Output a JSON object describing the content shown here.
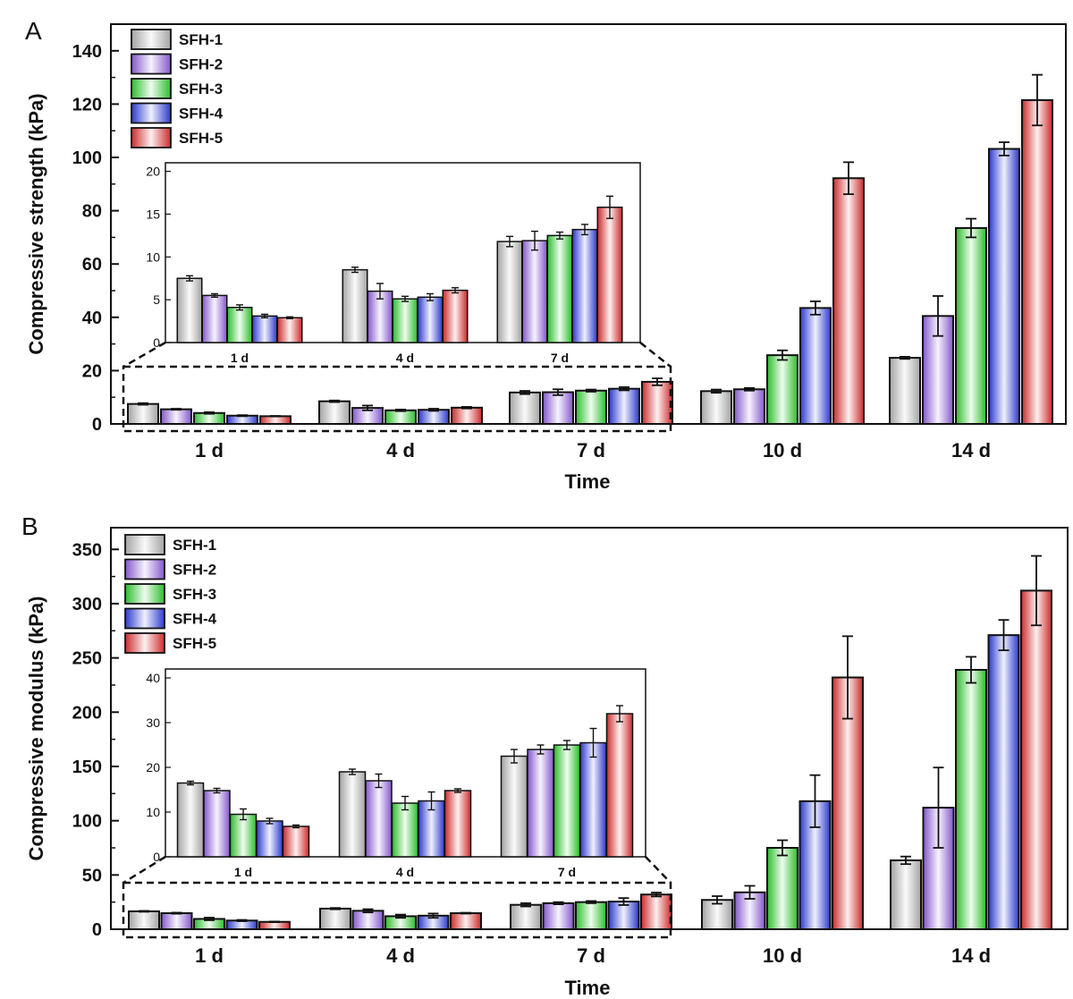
{
  "colors": {
    "SFH-1": "#c0c0c0",
    "SFH-2": "#9a66ee",
    "SFH-3": "#33dd33",
    "SFH-4": "#3344ee",
    "SFH-5": "#ee3333"
  },
  "chart_data": [
    {
      "panel": "A",
      "type": "bar",
      "xlabel": "Time",
      "ylabel": "Compressive strength (kPa)",
      "ylim": [
        0,
        150
      ],
      "yticks": [
        0,
        20,
        40,
        60,
        80,
        100,
        120,
        140
      ],
      "categories": [
        "1 d",
        "4 d",
        "7 d",
        "10 d",
        "14 d"
      ],
      "legend": "top-left",
      "series": [
        {
          "name": "SFH-1",
          "values": [
            7.5,
            8.5,
            11.8,
            12.3,
            24.8
          ],
          "errors": [
            0.3,
            0.3,
            0.6,
            0.6,
            0.4
          ]
        },
        {
          "name": "SFH-2",
          "values": [
            5.5,
            6.0,
            11.9,
            13.0,
            40.5
          ],
          "errors": [
            0.2,
            0.9,
            1.1,
            0.5,
            7.5
          ]
        },
        {
          "name": "SFH-3",
          "values": [
            4.1,
            5.1,
            12.5,
            25.8,
            73.5
          ],
          "errors": [
            0.3,
            0.3,
            0.4,
            1.8,
            3.5
          ]
        },
        {
          "name": "SFH-4",
          "values": [
            3.1,
            5.3,
            13.2,
            43.5,
            103.2
          ],
          "errors": [
            0.2,
            0.4,
            0.6,
            2.5,
            2.5
          ]
        },
        {
          "name": "SFH-5",
          "values": [
            2.9,
            6.1,
            15.8,
            92.2,
            121.5
          ],
          "errors": [
            0.1,
            0.3,
            1.3,
            6.0,
            9.5
          ]
        }
      ],
      "inset": {
        "categories": [
          "1 d",
          "4 d",
          "7 d"
        ],
        "ylim": [
          0,
          21
        ],
        "yticks": [
          0,
          5,
          10,
          15,
          20
        ]
      }
    },
    {
      "panel": "B",
      "type": "bar",
      "xlabel": "Time",
      "ylabel": "Compressive modulus (kPa)",
      "ylim": [
        0,
        370
      ],
      "yticks": [
        0,
        50,
        100,
        150,
        200,
        250,
        300,
        350
      ],
      "categories": [
        "1 d",
        "4 d",
        "7 d",
        "10 d",
        "14 d"
      ],
      "legend": "top-left",
      "series": [
        {
          "name": "SFH-1",
          "values": [
            16.5,
            19.0,
            22.5,
            27.0,
            63.5
          ],
          "errors": [
            0.4,
            0.6,
            1.5,
            3.5,
            3.5
          ]
        },
        {
          "name": "SFH-2",
          "values": [
            14.8,
            17.0,
            24.0,
            34.0,
            112.0
          ],
          "errors": [
            0.5,
            1.5,
            1.0,
            6.0,
            37.0
          ]
        },
        {
          "name": "SFH-3",
          "values": [
            9.5,
            12.0,
            25.0,
            75.0,
            239.0
          ],
          "errors": [
            1.2,
            1.5,
            1.0,
            7.0,
            12.0
          ]
        },
        {
          "name": "SFH-4",
          "values": [
            8.0,
            12.5,
            25.5,
            118.0,
            271.0
          ],
          "errors": [
            0.6,
            2.0,
            3.2,
            24.0,
            14.0
          ]
        },
        {
          "name": "SFH-5",
          "values": [
            6.8,
            14.8,
            32.0,
            232.0,
            312.0
          ],
          "errors": [
            0.3,
            0.4,
            1.8,
            38.0,
            32.0
          ]
        }
      ],
      "inset": {
        "categories": [
          "1 d",
          "4 d",
          "7 d"
        ],
        "ylim": [
          0,
          42
        ],
        "yticks": [
          0,
          10,
          20,
          30,
          40
        ]
      }
    }
  ],
  "panel_labels": [
    "A",
    "B"
  ]
}
